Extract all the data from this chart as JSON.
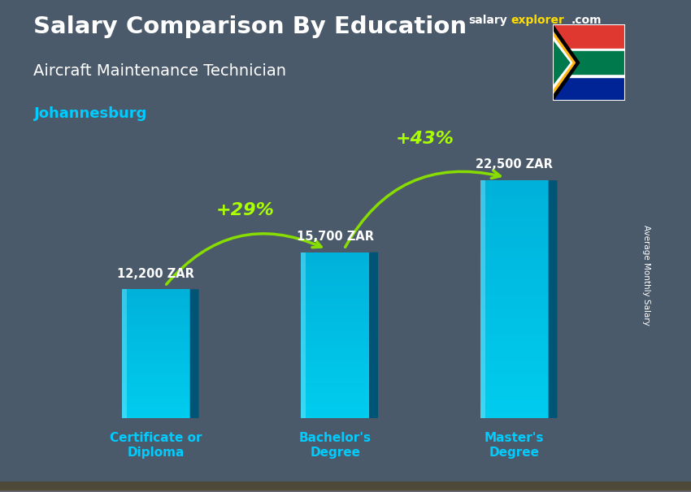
{
  "title": "Salary Comparison By Education",
  "subtitle": "Aircraft Maintenance Technician",
  "city": "Johannesburg",
  "ylabel": "Average Monthly Salary",
  "categories": [
    "Certificate or\nDiploma",
    "Bachelor's\nDegree",
    "Master's\nDegree"
  ],
  "values": [
    12200,
    15700,
    22500
  ],
  "value_labels": [
    "12,200 ZAR",
    "15,700 ZAR",
    "22,500 ZAR"
  ],
  "pct_labels": [
    "+29%",
    "+43%"
  ],
  "bar_color_top": "#00d4ff",
  "bar_color_bottom": "#0077aa",
  "background_color": "#5a6a7a",
  "title_color": "#ffffff",
  "subtitle_color": "#ffffff",
  "city_color": "#00ccff",
  "value_color": "#ffffff",
  "pct_color": "#aaff00",
  "arrow_color": "#88dd00",
  "xtick_color": "#00ccff",
  "brand_color_salary": "#ffffff",
  "brand_color_explorer": "#ffdd00",
  "brand_color_com": "#ffffff",
  "ylim": [
    0,
    27000
  ],
  "figsize": [
    8.5,
    6.06
  ],
  "dpi": 100
}
